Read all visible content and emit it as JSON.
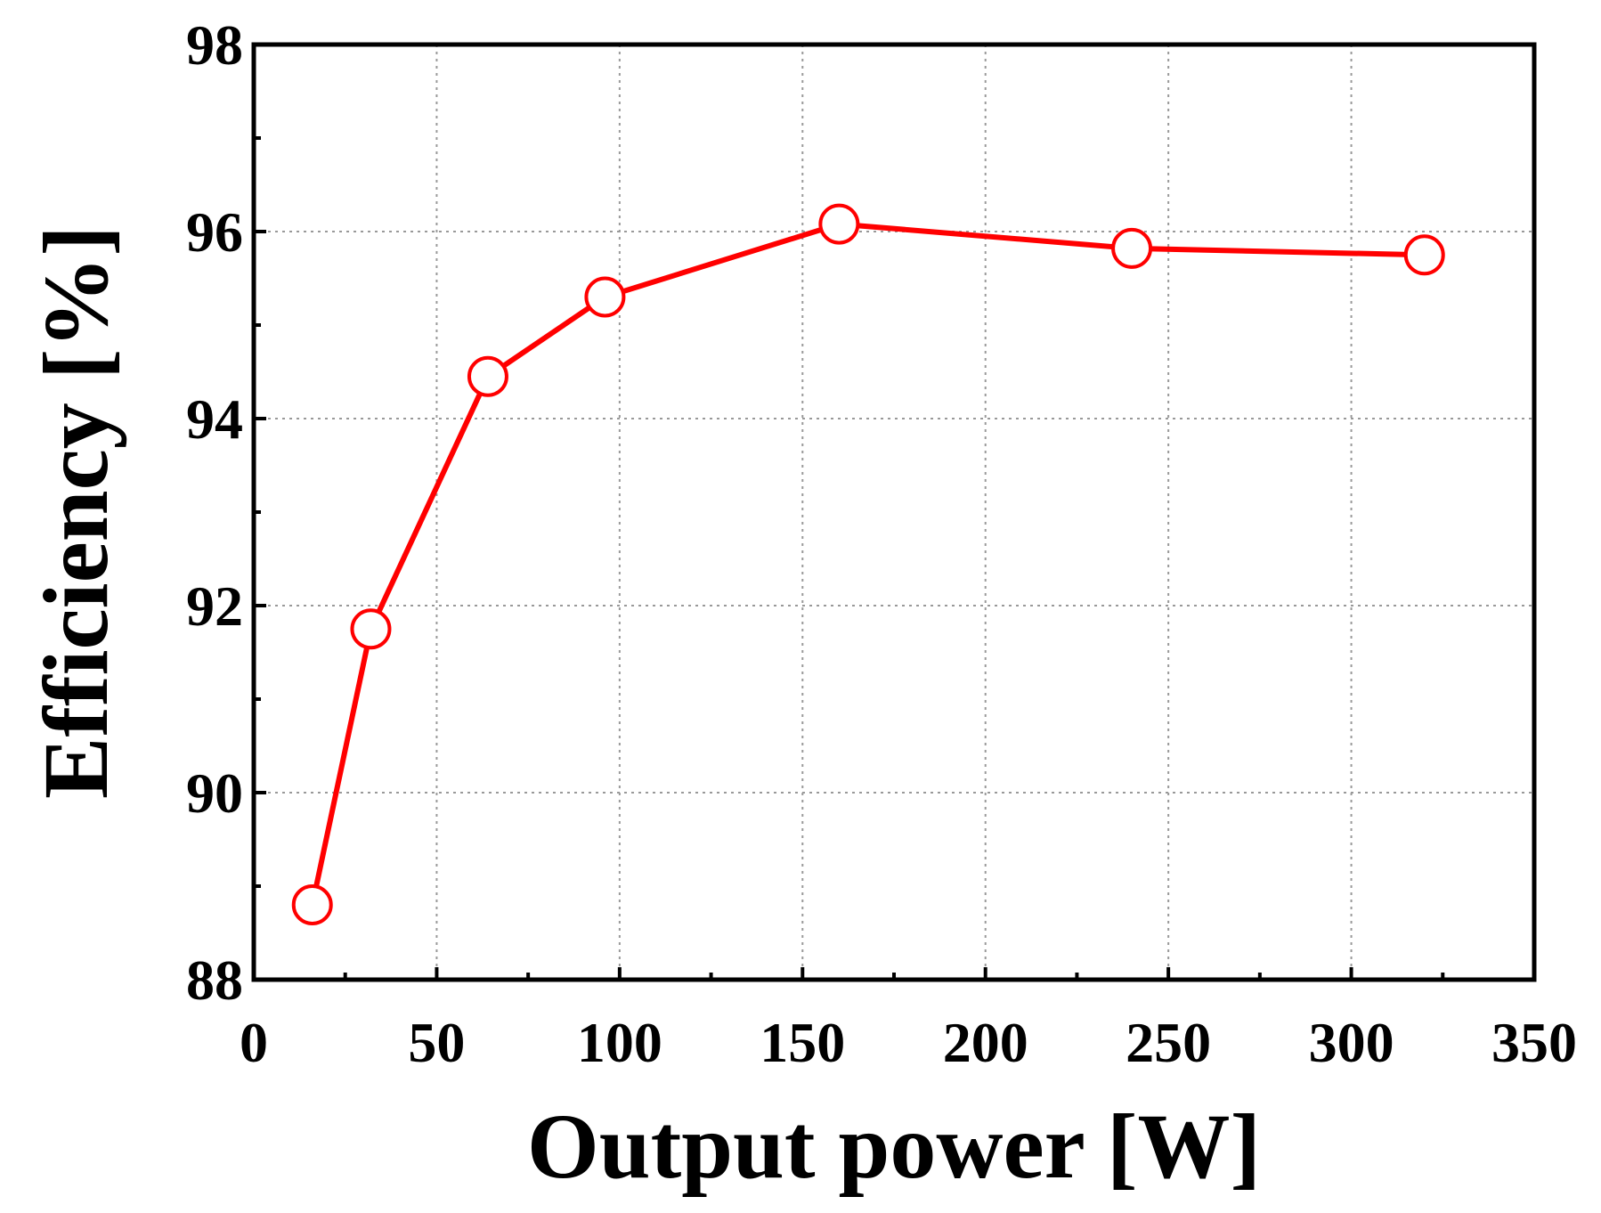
{
  "chart_data": {
    "type": "line",
    "xlabel": "Output power [W]",
    "ylabel": "Efficiency [%]",
    "xlim": [
      0,
      350
    ],
    "ylim": [
      88,
      98
    ],
    "xticks": [
      0,
      50,
      100,
      150,
      200,
      250,
      300,
      350
    ],
    "xtick_labels": [
      "0",
      "50",
      "100",
      "150",
      "200",
      "250",
      "300",
      "350"
    ],
    "yticks": [
      88,
      90,
      92,
      94,
      96,
      98
    ],
    "ytick_labels": [
      "88",
      "90",
      "92",
      "94",
      "96",
      "98"
    ],
    "grid": true,
    "colors": {
      "series": "#ff0000",
      "axis": "#000000",
      "grid": "#999999"
    },
    "series": [
      {
        "x": [
          16,
          32,
          64,
          96,
          160,
          240,
          320
        ],
        "y": [
          88.8,
          91.75,
          94.45,
          95.3,
          96.08,
          95.82,
          95.75
        ],
        "marker": "open-circle"
      }
    ]
  }
}
